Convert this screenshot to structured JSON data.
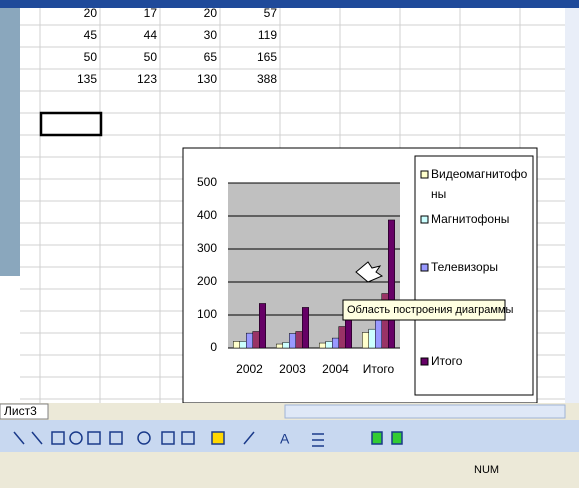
{
  "sheet": {
    "tab": "Лист3",
    "status": "NUM"
  },
  "tooltip": "Область построения диаграммы",
  "chart_data": {
    "type": "bar",
    "categories": [
      "2002",
      "2003",
      "2004",
      "Итого"
    ],
    "series": [
      {
        "name": "Видеомагнитофоны",
        "color": "#ffffcc",
        "values": [
          20,
          12,
          15,
          47
        ]
      },
      {
        "name": "Магнитофоны",
        "color": "#ccffff",
        "values": [
          20,
          17,
          20,
          57
        ]
      },
      {
        "name": "Телевизоры",
        "color": "#9999ff",
        "values": [
          45,
          44,
          30,
          119
        ]
      },
      {
        "name": null,
        "color": "#993366",
        "values": [
          50,
          50,
          65,
          165
        ]
      },
      {
        "name": "Итого",
        "color": "#660066",
        "values": [
          135,
          123,
          130,
          388
        ]
      }
    ],
    "ylim": [
      0,
      500
    ],
    "yticks": [
      0,
      100,
      200,
      300,
      400,
      500
    ],
    "grid": true
  }
}
